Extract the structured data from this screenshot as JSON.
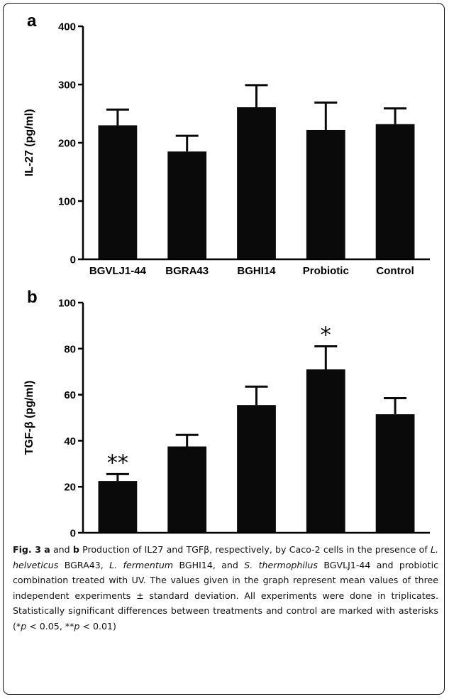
{
  "chart_data": [
    {
      "panel_label": "a",
      "type": "bar",
      "categories": [
        "BGVLJ1-44",
        "BGRA43",
        "BGHI14",
        "Probiotic",
        "Control"
      ],
      "values": [
        230,
        185,
        261,
        222,
        232
      ],
      "errors": [
        27,
        27,
        38,
        47,
        27
      ],
      "significance": [
        "",
        "",
        "",
        "",
        ""
      ],
      "title": "",
      "xlabel": "",
      "ylabel": "IL-27 (pg/ml)",
      "ylim": [
        0,
        400
      ],
      "yticks": [
        0,
        100,
        200,
        300,
        400
      ],
      "bar_color": "#0a0a0a",
      "grid": false,
      "legend": "none"
    },
    {
      "panel_label": "b",
      "type": "bar",
      "categories": [
        "BGVLJ1-44",
        "BGRA43",
        "BGHI14",
        "Probiotic",
        "Control"
      ],
      "values": [
        22.5,
        37.5,
        55.5,
        71,
        51.5
      ],
      "errors": [
        3,
        5,
        8,
        10,
        7
      ],
      "significance": [
        "**",
        "",
        "",
        "*",
        ""
      ],
      "title": "",
      "xlabel": "",
      "ylabel": "TGF-β (pg/ml)",
      "ylim": [
        0,
        100
      ],
      "yticks": [
        0,
        20,
        40,
        60,
        80,
        100
      ],
      "bar_color": "#0a0a0a",
      "grid": false,
      "legend": "none"
    }
  ],
  "caption": {
    "fig_label": "Fig. 3",
    "panel_a": "a",
    "and_text": " and ",
    "panel_b": "b",
    "text_1": " Production of IL27 and TGFβ, respectively, by Caco-2 cells in the presence of ",
    "species_1": "L. helveticus",
    "text_2": " BGRA43, ",
    "species_2": "L. fermentum",
    "text_3": " BGHI14, and ",
    "species_3": "S. thermophilus",
    "text_4": " BGVLJ1-44 and probiotic combination treated with UV. The values given in the graph represent mean values of three independent experiments ± standard deviation. All experiments were done in triplicates. Statistically significant differences between treatments and control are marked with asterisks (*",
    "p_1": "p",
    "text_5": " < 0.05, **",
    "p_2": "p",
    "text_6": " < 0.01)"
  }
}
